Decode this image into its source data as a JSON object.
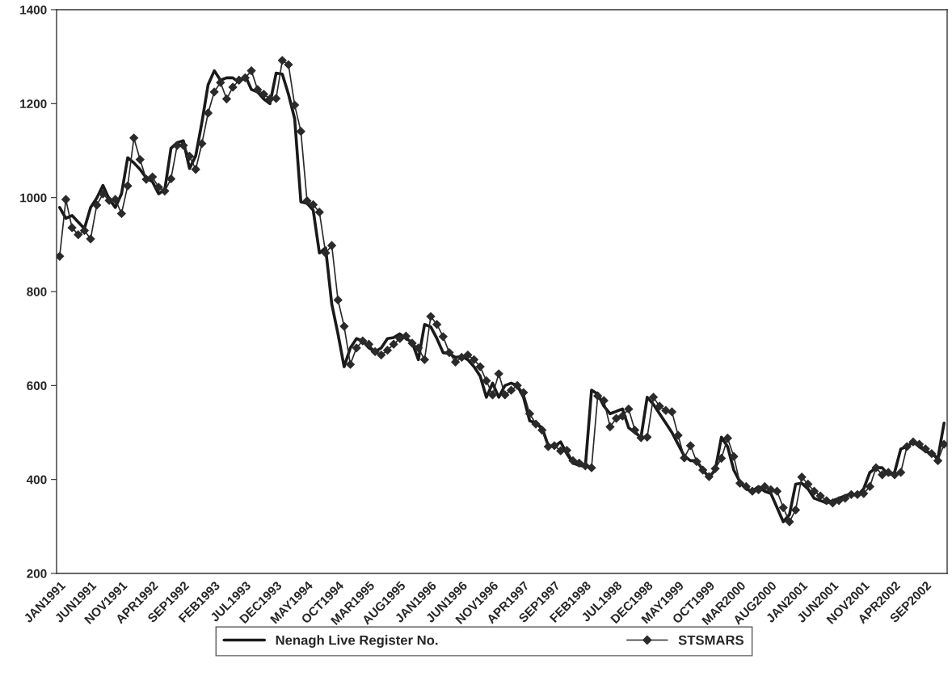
{
  "chart_data": {
    "type": "line",
    "categories": [
      "JAN1991",
      null,
      null,
      null,
      null,
      "JUN1991",
      null,
      null,
      null,
      null,
      "NOV1991",
      null,
      null,
      null,
      null,
      "APR1992",
      null,
      null,
      null,
      null,
      "SEP1992",
      null,
      null,
      null,
      null,
      "FEB1993",
      null,
      null,
      null,
      null,
      "JUL1993",
      null,
      null,
      null,
      null,
      "DEC1993",
      null,
      null,
      null,
      null,
      "MAY1994",
      null,
      null,
      null,
      null,
      "OCT1994",
      null,
      null,
      null,
      null,
      "MAR1995",
      null,
      null,
      null,
      null,
      "AUG1995",
      null,
      null,
      null,
      null,
      "JAN1996",
      null,
      null,
      null,
      null,
      "JUN1996",
      null,
      null,
      null,
      null,
      "NOV1996",
      null,
      null,
      null,
      null,
      "APR1997",
      null,
      null,
      null,
      null,
      "SEP1997",
      null,
      null,
      null,
      null,
      "FEB1998",
      null,
      null,
      null,
      null,
      "JUL1998",
      null,
      null,
      null,
      null,
      "DEC1998",
      null,
      null,
      null,
      null,
      "MAY1999",
      null,
      null,
      null,
      null,
      "OCT1999",
      null,
      null,
      null,
      null,
      "MAR2000",
      null,
      null,
      null,
      null,
      "AUG2000",
      null,
      null,
      null,
      null,
      "JAN2001",
      null,
      null,
      null,
      null,
      "JUN2001",
      null,
      null,
      null,
      null,
      "NOV2001",
      null,
      null,
      null,
      null,
      "APR2002",
      null,
      null,
      null,
      null,
      "SEP2002",
      null,
      null,
      null
    ],
    "series": [
      {
        "name": "Nenagh Live Register No.",
        "color": "#1a1a1a",
        "marker": "none",
        "values": [
          979,
          956,
          962,
          948,
          934,
          979,
          999,
          1026,
          997,
          979,
          1008,
          1085,
          1074,
          1060,
          1042,
          1034,
          1008,
          1017,
          1105,
          1117,
          1121,
          1062,
          1089,
          1160,
          1240,
          1270,
          1250,
          1255,
          1255,
          1245,
          1260,
          1230,
          1225,
          1210,
          1200,
          1265,
          1263,
          1220,
          1168,
          991,
          988,
          973,
          882,
          893,
          773,
          710,
          640,
          680,
          700,
          695,
          680,
          672,
          680,
          700,
          702,
          710,
          700,
          692,
          655,
          730,
          725,
          700,
          670,
          668,
          660,
          662,
          655,
          640,
          620,
          575,
          605,
          575,
          600,
          605,
          600,
          575,
          525,
          520,
          510,
          472,
          470,
          480,
          455,
          435,
          430,
          428,
          590,
          582,
          556,
          540,
          545,
          550,
          510,
          500,
          490,
          575,
          560,
          540,
          520,
          500,
          475,
          450,
          440,
          440,
          420,
          405,
          420,
          490,
          470,
          420,
          395,
          380,
          375,
          385,
          375,
          370,
          340,
          310,
          325,
          390,
          392,
          380,
          360,
          355,
          350,
          355,
          360,
          365,
          370,
          365,
          380,
          415,
          425,
          425,
          410,
          415,
          465,
          470,
          480,
          470,
          460,
          455,
          445,
          520
        ]
      },
      {
        "name": "STSMARS",
        "color": "#2a2a2a",
        "marker": "diamond",
        "values": [
          875,
          996,
          936,
          921,
          930,
          912,
          984,
          1008,
          994,
          996,
          966,
          1025,
          1127,
          1081,
          1039,
          1044,
          1022,
          1014,
          1040,
          1111,
          1111,
          1088,
          1060,
          1115,
          1180,
          1225,
          1245,
          1210,
          1235,
          1250,
          1255,
          1270,
          1230,
          1220,
          1210,
          1211,
          1292,
          1283,
          1197,
          1141,
          993,
          985,
          969,
          882,
          898,
          782,
          726,
          645,
          680,
          695,
          688,
          672,
          665,
          675,
          688,
          700,
          705,
          690,
          680,
          655,
          747,
          730,
          704,
          670,
          650,
          660,
          665,
          655,
          640,
          610,
          580,
          625,
          580,
          590,
          600,
          585,
          540,
          518,
          505,
          470,
          472,
          461,
          462,
          440,
          435,
          429,
          425,
          578,
          568,
          512,
          530,
          535,
          550,
          505,
          489,
          490,
          575,
          556,
          547,
          544,
          494,
          446,
          472,
          438,
          420,
          406,
          423,
          445,
          488,
          449,
          392,
          385,
          375,
          378,
          385,
          378,
          375,
          340,
          310,
          335,
          405,
          390,
          375,
          365,
          355,
          350,
          355,
          360,
          368,
          368,
          370,
          385,
          425,
          410,
          415,
          410,
          415,
          470,
          480,
          475,
          465,
          455,
          440,
          475
        ]
      }
    ],
    "ylim": [
      200,
      1400
    ],
    "yticks": [
      200,
      400,
      600,
      800,
      1000,
      1200,
      1400
    ],
    "grid": false,
    "legend": "bottom",
    "line_style": "solid"
  }
}
